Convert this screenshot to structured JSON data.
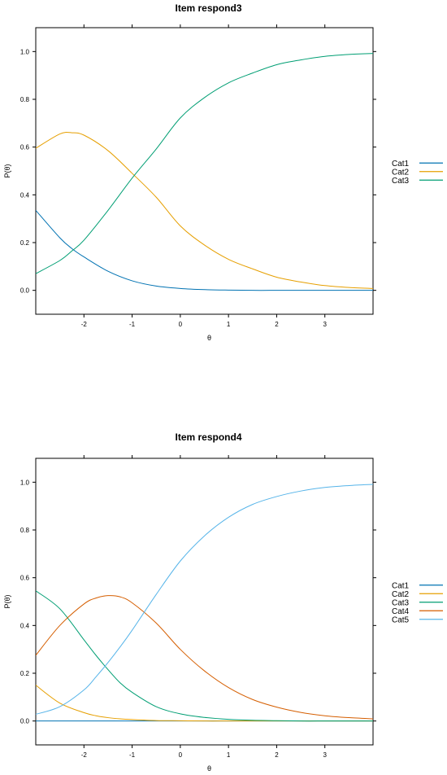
{
  "chart_data": [
    {
      "type": "line",
      "title": "Item respond3",
      "xlabel": "θ",
      "ylabel": "P(θ)",
      "xlim": [
        -3,
        4
      ],
      "ylim": [
        -0.1,
        1.1
      ],
      "x_ticks": [
        -2,
        -1,
        0,
        1,
        2,
        3
      ],
      "x_tick_labels": [
        "-2",
        "-1",
        "0",
        "1",
        "2",
        "3"
      ],
      "y_ticks": [
        0.0,
        0.2,
        0.4,
        0.6,
        0.8,
        1.0
      ],
      "y_tick_labels": [
        "0.0",
        "0.2",
        "0.4",
        "0.6",
        "0.8",
        "1.0"
      ],
      "legend_position": "right",
      "x": [
        -3,
        -2.5,
        -2.25,
        -2,
        -1.5,
        -1,
        -0.5,
        0,
        0.5,
        1,
        1.5,
        2,
        2.5,
        3,
        3.5,
        4
      ],
      "series": [
        {
          "name": "Cat1",
          "color": "#0072B2",
          "values": [
            0.335,
            0.22,
            0.175,
            0.14,
            0.08,
            0.04,
            0.018,
            0.008,
            0.003,
            0.001,
            0.0,
            0.0,
            0.0,
            0.0,
            0.0,
            0.0
          ]
        },
        {
          "name": "Cat2",
          "color": "#E69F00",
          "values": [
            0.595,
            0.655,
            0.66,
            0.65,
            0.585,
            0.49,
            0.39,
            0.27,
            0.19,
            0.13,
            0.09,
            0.055,
            0.035,
            0.02,
            0.012,
            0.008
          ]
        },
        {
          "name": "Cat3",
          "color": "#009E73",
          "values": [
            0.07,
            0.125,
            0.165,
            0.21,
            0.335,
            0.47,
            0.592,
            0.722,
            0.807,
            0.869,
            0.91,
            0.945,
            0.965,
            0.98,
            0.988,
            0.992
          ]
        }
      ]
    },
    {
      "type": "line",
      "title": "Item respond4",
      "xlabel": "θ",
      "ylabel": "P(θ)",
      "xlim": [
        -3,
        4
      ],
      "ylim": [
        -0.1,
        1.1
      ],
      "x_ticks": [
        -2,
        -1,
        0,
        1,
        2,
        3
      ],
      "x_tick_labels": [
        "-2",
        "-1",
        "0",
        "1",
        "2",
        "3"
      ],
      "y_ticks": [
        0.0,
        0.2,
        0.4,
        0.6,
        0.8,
        1.0
      ],
      "y_tick_labels": [
        "0.0",
        "0.2",
        "0.4",
        "0.6",
        "0.8",
        "1.0"
      ],
      "legend_position": "right",
      "x": [
        -3,
        -2.5,
        -2,
        -1.75,
        -1.5,
        -1.25,
        -1,
        -0.5,
        0,
        0.5,
        1,
        1.5,
        2,
        2.5,
        3,
        3.5,
        4
      ],
      "series": [
        {
          "name": "Cat1",
          "color": "#0072B2",
          "values": [
            0.0,
            0.0,
            0.0,
            0.0,
            0.0,
            0.0,
            0.0,
            0.0,
            0.0,
            0.0,
            0.0,
            0.0,
            0.0,
            0.0,
            0.0,
            0.0,
            0.0
          ]
        },
        {
          "name": "Cat2",
          "color": "#E69F00",
          "values": [
            0.15,
            0.075,
            0.035,
            0.022,
            0.014,
            0.009,
            0.006,
            0.002,
            0.001,
            0.0,
            0.0,
            0.0,
            0.0,
            0.0,
            0.0,
            0.0,
            0.0
          ]
        },
        {
          "name": "Cat3",
          "color": "#009E73",
          "values": [
            0.545,
            0.47,
            0.34,
            0.275,
            0.215,
            0.16,
            0.12,
            0.06,
            0.03,
            0.015,
            0.007,
            0.003,
            0.0015,
            0.0,
            0.0,
            0.0,
            0.0
          ]
        },
        {
          "name": "Cat4",
          "color": "#D55E00",
          "values": [
            0.275,
            0.4,
            0.49,
            0.515,
            0.525,
            0.52,
            0.495,
            0.41,
            0.3,
            0.21,
            0.14,
            0.09,
            0.058,
            0.036,
            0.022,
            0.014,
            0.009
          ]
        },
        {
          "name": "Cat5",
          "color": "#56B4E9",
          "values": [
            0.028,
            0.06,
            0.13,
            0.185,
            0.245,
            0.31,
            0.38,
            0.53,
            0.67,
            0.775,
            0.853,
            0.907,
            0.94,
            0.963,
            0.978,
            0.986,
            0.991
          ]
        }
      ]
    }
  ]
}
